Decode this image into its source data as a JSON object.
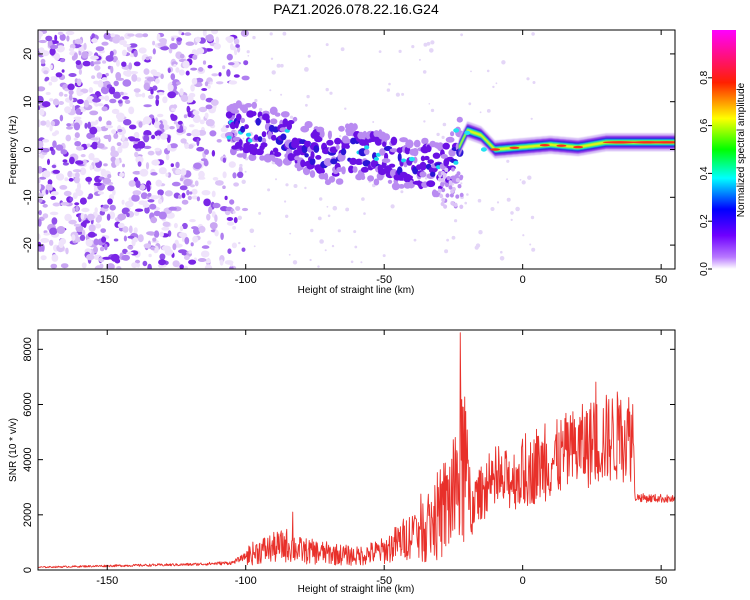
{
  "title": "PAZ1.2026.078.22.16.G24",
  "colors": {
    "snr_line": "#e8302a",
    "spectrogram_low": "#e6d6f6",
    "spectrogram_mid": "#8a2be2",
    "spectrogram_dense": "#2a1bd6"
  },
  "chart_data": [
    {
      "type": "heatmap",
      "name": "spectrogram",
      "xlabel": "Height of straight line (km)",
      "ylabel": "Frequency (Hz)",
      "xlim": [
        -175,
        55
      ],
      "ylim": [
        -25,
        25
      ],
      "xticks": [
        -150,
        -100,
        -50,
        0,
        50
      ],
      "yticks": [
        -20,
        -10,
        0,
        10,
        20
      ],
      "colorbar": {
        "label": "Normalized spectral amplitude",
        "range": [
          0,
          1
        ],
        "ticks": [
          0.0,
          0.2,
          0.4,
          0.6,
          0.8
        ],
        "tick_labels": [
          "0.0",
          "0.2",
          "0.4",
          "0.6",
          "0.8"
        ],
        "colormap": [
          "#ffffff",
          "#8000ff",
          "#0000ff",
          "#00ffff",
          "#00ff00",
          "#ffff00",
          "#ff0000",
          "#ff00ff"
        ]
      },
      "signal_track": {
        "x": [
          -105,
          -100,
          -90,
          -80,
          -70,
          -60,
          -50,
          -40,
          -30,
          -25,
          -20,
          -15,
          -10,
          0,
          10,
          20,
          30,
          40,
          50,
          55
        ],
        "frequency": [
          4,
          4,
          3,
          1,
          -2,
          0,
          -2,
          -3,
          -4,
          -2,
          4,
          3,
          0,
          0.5,
          1,
          0.5,
          1.5,
          1.5,
          1.5,
          1.5
        ]
      },
      "noise_region_x": [
        -175,
        -105
      ]
    },
    {
      "type": "line",
      "name": "snr",
      "xlabel": "Height of straight line (km)",
      "ylabel": "SNR (10 * v/v)",
      "xlim": [
        -175,
        55
      ],
      "ylim": [
        0,
        8700
      ],
      "xticks": [
        -150,
        -100,
        -50,
        0,
        50
      ],
      "yticks": [
        0,
        2000,
        4000,
        6000,
        8000
      ],
      "envelope": {
        "x": [
          -175,
          -150,
          -120,
          -105,
          -100,
          -95,
          -85,
          -80,
          -70,
          -60,
          -50,
          -40,
          -35,
          -30,
          -27,
          -24,
          -22,
          -21,
          -20,
          -18,
          -15,
          -10,
          -5,
          0,
          5,
          10,
          15,
          20,
          25,
          30,
          35,
          40,
          40.5,
          45,
          50,
          55
        ],
        "y": [
          100,
          150,
          200,
          260,
          500,
          700,
          900,
          700,
          600,
          500,
          700,
          1300,
          1600,
          2000,
          2400,
          3000,
          4000,
          4200,
          2800,
          2400,
          2800,
          3000,
          3300,
          3400,
          3700,
          3900,
          4200,
          4400,
          4600,
          4750,
          4850,
          4900,
          2650,
          2600,
          2600,
          2550
        ]
      },
      "peaks": [
        {
          "x": -83,
          "y": 2100
        },
        {
          "x": -22.5,
          "y": 8600
        },
        {
          "x": -21.5,
          "y": 5900
        },
        {
          "x": 8,
          "y": 5300
        },
        {
          "x": 5,
          "y": 5100
        }
      ]
    }
  ]
}
